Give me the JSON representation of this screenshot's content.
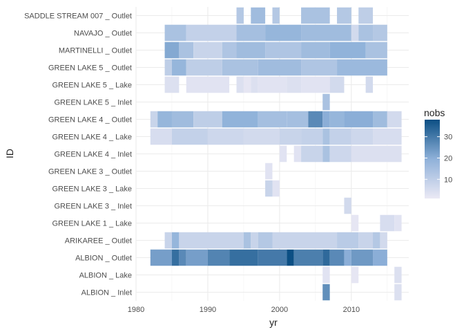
{
  "chart_data": {
    "type": "heatmap",
    "xlabel": "yr",
    "ylabel": "ID",
    "xlim": [
      1980,
      2018
    ],
    "x_ticks": [
      1980,
      1990,
      2000,
      2010
    ],
    "legend": {
      "title": "nobs",
      "ticks": [
        10,
        20,
        30
      ],
      "range": [
        1,
        38
      ],
      "placement": "right"
    },
    "color_scale": {
      "low": "#ebe9f5",
      "mid": "#8fb1d9",
      "high": "#0c4f84"
    },
    "grid": true,
    "rows": [
      {
        "id": "SADDLE STREAM 007 _ Outlet",
        "segments": [
          [
            1994,
            1995,
            12
          ],
          [
            1996,
            1998,
            16
          ],
          [
            1999,
            2000,
            12
          ],
          [
            2003,
            2007,
            14
          ],
          [
            2008,
            2010,
            12
          ],
          [
            2011,
            2013,
            10
          ]
        ]
      },
      {
        "id": "NAVAJO _ Outlet",
        "segments": [
          [
            1984,
            1987,
            14
          ],
          [
            1987,
            1994,
            9
          ],
          [
            1994,
            1998,
            15
          ],
          [
            1998,
            2003,
            18
          ],
          [
            2003,
            2010,
            16
          ],
          [
            2010,
            2011,
            6
          ],
          [
            2011,
            2013,
            14
          ],
          [
            2013,
            2015,
            12
          ]
        ]
      },
      {
        "id": "MARTINELLI _ Outlet",
        "segments": [
          [
            1984,
            1986,
            21
          ],
          [
            1986,
            1988,
            14
          ],
          [
            1988,
            1992,
            8
          ],
          [
            1992,
            1994,
            13
          ],
          [
            1994,
            1998,
            16
          ],
          [
            1998,
            2003,
            13
          ],
          [
            2003,
            2007,
            16
          ],
          [
            2007,
            2012,
            19
          ],
          [
            2012,
            2015,
            14
          ]
        ]
      },
      {
        "id": "GREEN LAKE 5 _ Outlet",
        "segments": [
          [
            1984,
            1985,
            10
          ],
          [
            1985,
            1987,
            18
          ],
          [
            1987,
            1992,
            10
          ],
          [
            1992,
            1997,
            14
          ],
          [
            1997,
            2003,
            16
          ],
          [
            2003,
            2008,
            13
          ],
          [
            2008,
            2015,
            17
          ]
        ]
      },
      {
        "id": "GREEN LAKE 5 _ Lake",
        "segments": [
          [
            1984,
            1986,
            4
          ],
          [
            1987,
            1993,
            3
          ],
          [
            1994,
            1995,
            4
          ],
          [
            1995,
            1996,
            2
          ],
          [
            1996,
            1997,
            4
          ],
          [
            1997,
            2001,
            3
          ],
          [
            2001,
            2003,
            4
          ],
          [
            2003,
            2007,
            3
          ],
          [
            2007,
            2009,
            6
          ],
          [
            2012,
            2013,
            6
          ]
        ]
      },
      {
        "id": "GREEN LAKE 5 _ Inlet",
        "segments": [
          [
            2006,
            2007,
            14
          ]
        ]
      },
      {
        "id": "GREEN LAKE 4 _ Outlet",
        "segments": [
          [
            1982,
            1983,
            8
          ],
          [
            1983,
            1985,
            18
          ],
          [
            1985,
            1988,
            16
          ],
          [
            1988,
            1992,
            10
          ],
          [
            1992,
            1997,
            19
          ],
          [
            1997,
            2001,
            15
          ],
          [
            2001,
            2004,
            15
          ],
          [
            2004,
            2006,
            27
          ],
          [
            2006,
            2007,
            20
          ],
          [
            2007,
            2009,
            18
          ],
          [
            2009,
            2013,
            20
          ],
          [
            2013,
            2015,
            16
          ],
          [
            2015,
            2017,
            6
          ]
        ]
      },
      {
        "id": "GREEN LAKE 4 _ Lake",
        "segments": [
          [
            1982,
            1985,
            5
          ],
          [
            1985,
            1990,
            9
          ],
          [
            1990,
            1995,
            7
          ],
          [
            1995,
            2000,
            6
          ],
          [
            2000,
            2003,
            8
          ],
          [
            2003,
            2006,
            9
          ],
          [
            2006,
            2007,
            14
          ],
          [
            2007,
            2010,
            9
          ],
          [
            2010,
            2013,
            7
          ],
          [
            2013,
            2017,
            5
          ]
        ]
      },
      {
        "id": "GREEN LAKE 4 _ Inlet",
        "segments": [
          [
            2000,
            2001,
            3
          ],
          [
            2002,
            2003,
            3
          ],
          [
            2003,
            2006,
            8
          ],
          [
            2006,
            2007,
            14
          ],
          [
            2007,
            2010,
            7
          ],
          [
            2010,
            2017,
            4
          ]
        ]
      },
      {
        "id": "GREEN LAKE 3 _ Outlet",
        "segments": [
          [
            1998,
            1999,
            3
          ]
        ]
      },
      {
        "id": "GREEN LAKE 3 _ Lake",
        "segments": [
          [
            1998,
            1999,
            8
          ],
          [
            1999,
            2000,
            3
          ]
        ]
      },
      {
        "id": "GREEN LAKE 3 _ Inlet",
        "segments": [
          [
            2009,
            2010,
            6
          ]
        ]
      },
      {
        "id": "GREEN LAKE 1 _ Lake",
        "segments": [
          [
            2010,
            2011,
            2
          ],
          [
            2014,
            2016,
            5
          ],
          [
            2016,
            2017,
            3
          ]
        ]
      },
      {
        "id": "ARIKAREE _ Outlet",
        "segments": [
          [
            1984,
            1985,
            8
          ],
          [
            1985,
            1986,
            18
          ],
          [
            1986,
            1995,
            8
          ],
          [
            1995,
            1996,
            14
          ],
          [
            1996,
            1997,
            8
          ],
          [
            1997,
            1999,
            12
          ],
          [
            1999,
            2008,
            8
          ],
          [
            2008,
            2011,
            11
          ],
          [
            2011,
            2013,
            8
          ],
          [
            2013,
            2014,
            12
          ],
          [
            2014,
            2015,
            6
          ]
        ]
      },
      {
        "id": "ALBION _ Outlet",
        "segments": [
          [
            1982,
            1985,
            23
          ],
          [
            1985,
            1986,
            32
          ],
          [
            1986,
            1987,
            27
          ],
          [
            1987,
            1990,
            23
          ],
          [
            1990,
            1993,
            28
          ],
          [
            1993,
            1997,
            32
          ],
          [
            1997,
            2001,
            30
          ],
          [
            2001,
            2002,
            38
          ],
          [
            2002,
            2006,
            29
          ],
          [
            2006,
            2007,
            33
          ],
          [
            2007,
            2009,
            27
          ],
          [
            2009,
            2010,
            20
          ],
          [
            2010,
            2013,
            24
          ],
          [
            2013,
            2015,
            20
          ]
        ]
      },
      {
        "id": "ALBION _ Lake",
        "segments": [
          [
            2006,
            2007,
            3
          ],
          [
            2010,
            2011,
            2
          ],
          [
            2016,
            2017,
            4
          ]
        ]
      },
      {
        "id": "ALBION _ Inlet",
        "segments": [
          [
            2006,
            2007,
            26
          ],
          [
            2016,
            2017,
            4
          ]
        ]
      }
    ]
  }
}
